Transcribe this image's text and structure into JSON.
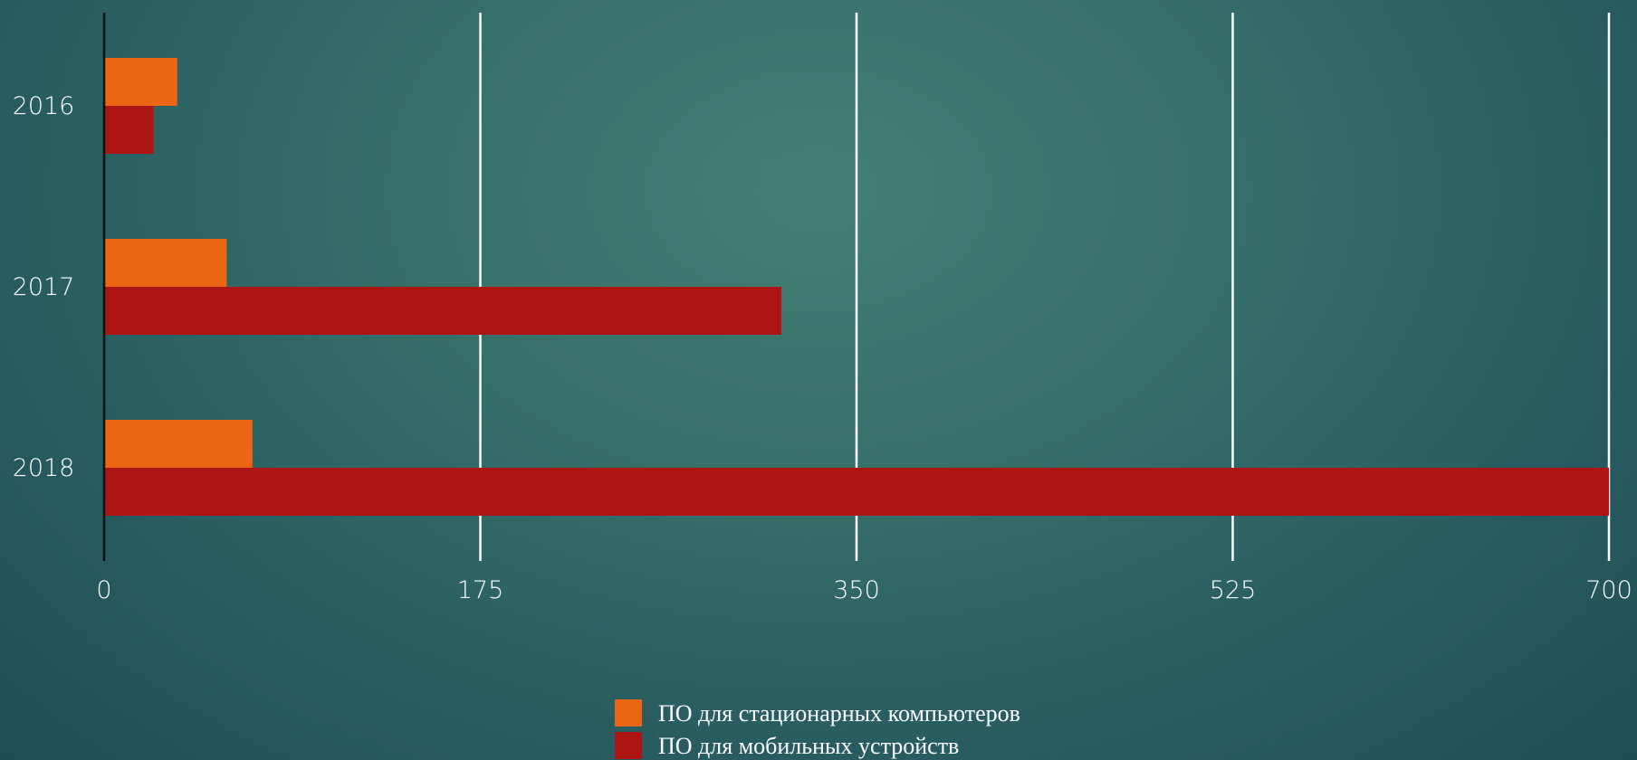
{
  "chart_data": {
    "type": "bar",
    "orientation": "horizontal",
    "categories": [
      "2016",
      "2017",
      "2018"
    ],
    "series": [
      {
        "name": "ПО для стационарных компьютеров",
        "color": "#ec6515",
        "values": [
          34,
          57,
          69
        ]
      },
      {
        "name": "ПО для мобильных устройств",
        "color": "#ad1515",
        "values": [
          23,
          315,
          700
        ]
      }
    ],
    "xlim": [
      0,
      700
    ],
    "xticks": [
      "0",
      "175",
      "350",
      "525",
      "700"
    ],
    "grid": true,
    "legend_position": "bottom"
  }
}
